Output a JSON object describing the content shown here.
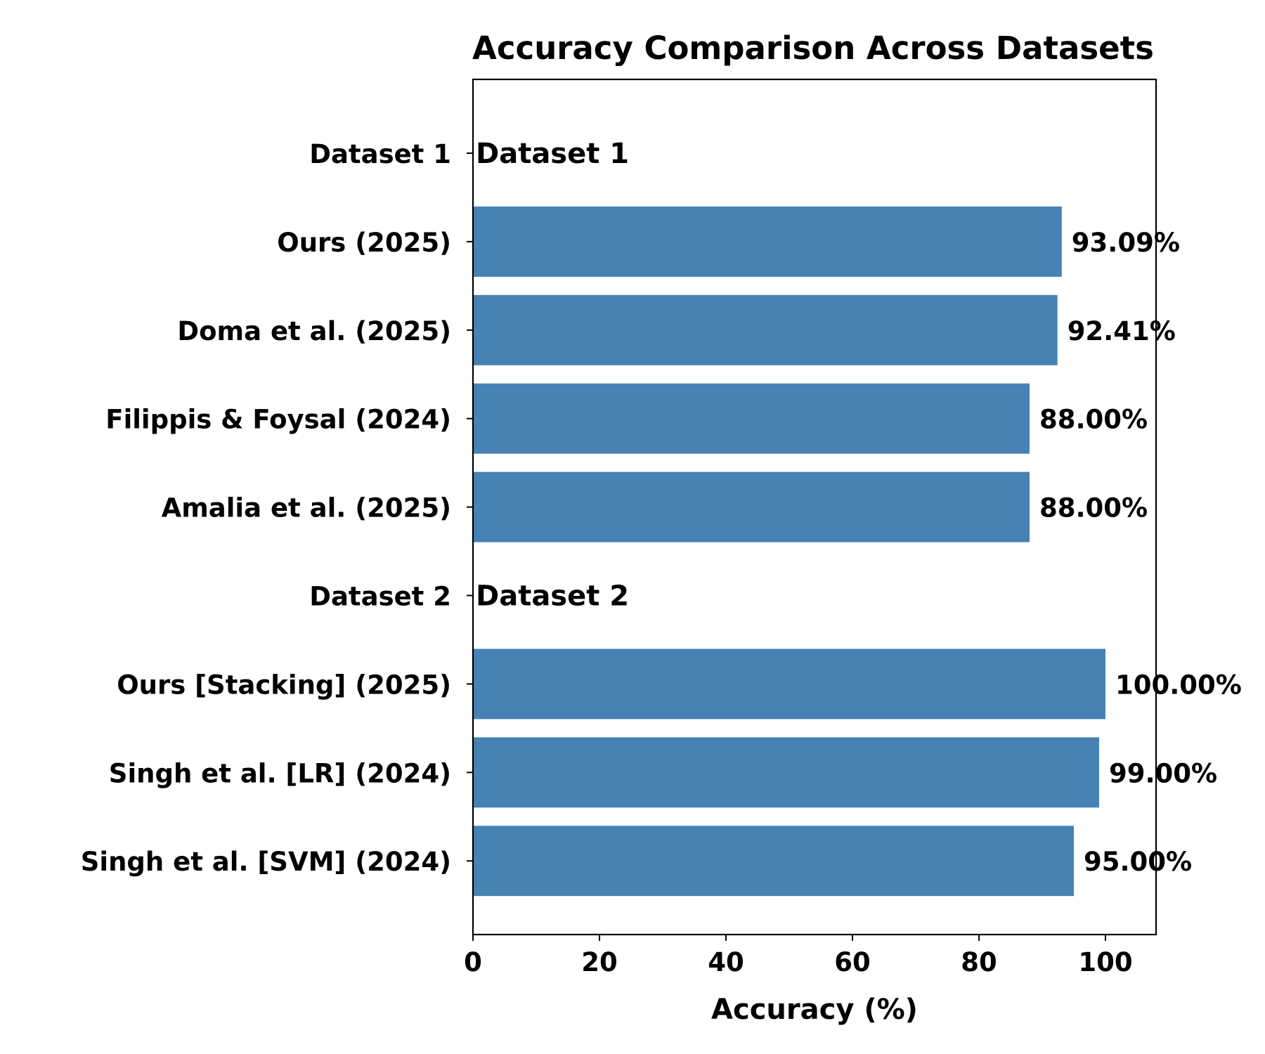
{
  "chart_data": {
    "type": "bar",
    "orientation": "horizontal",
    "title": "Accuracy Comparison Across Datasets",
    "xlabel": "Accuracy (%)",
    "ylabel": "",
    "xlim": [
      0,
      108
    ],
    "xticks": [
      0,
      20,
      40,
      60,
      80,
      100
    ],
    "grid": false,
    "bar_color": "#4682b4",
    "categories": [
      "Dataset 1",
      "Ours (2025)",
      "Doma et al. (2025)",
      "Filippis & Foysal (2024)",
      "Amalia et al. (2025)",
      "Dataset 2",
      "Ours [Stacking] (2025)",
      "Singh et al. [LR] (2024)",
      "Singh et al. [SVM] (2024)"
    ],
    "values": [
      null,
      93.09,
      92.41,
      88.0,
      88.0,
      null,
      100.0,
      99.0,
      95.0
    ],
    "data_labels": [
      "",
      "93.09%",
      "92.41%",
      "88.00%",
      "88.00%",
      "",
      "100.00%",
      "99.00%",
      "95.00%"
    ],
    "group_annotations": [
      {
        "category": "Dataset 1",
        "text": "Dataset 1"
      },
      {
        "category": "Dataset 2",
        "text": "Dataset 2"
      }
    ]
  }
}
